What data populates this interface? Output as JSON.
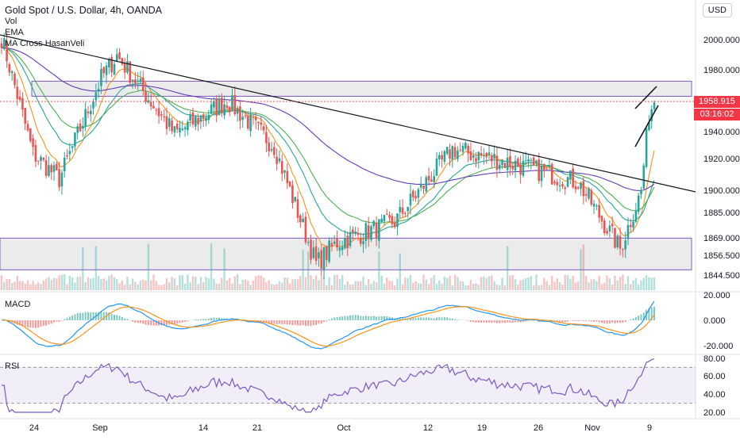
{
  "header": {
    "title": "Gold Spot / U.S. Dollar, 4h, OANDA",
    "indicators": [
      "Vol",
      "EMA",
      "MA Cross HasanVeli"
    ]
  },
  "currency_button": "USD",
  "last_price": {
    "value": "1958.915",
    "countdown": "03:16:02",
    "color": "#f23645"
  },
  "panes": {
    "macd_label": "MACD",
    "rsi_label": "RSI"
  },
  "price_axis": {
    "top_partial": "2",
    "ticks": [
      "2000.000",
      "1980.000",
      "1958.915",
      "1940.000",
      "1920.000",
      "1900.000",
      "1885.000",
      "1869.000",
      "1856.500",
      "1844.500"
    ]
  },
  "macd_axis": {
    "ticks": [
      "20.000",
      "0.000",
      "-20.000"
    ]
  },
  "rsi_axis": {
    "ticks": [
      "80.00",
      "60.00",
      "40.00",
      "20.00"
    ]
  },
  "time_axis": {
    "labels": [
      "24",
      "Sep",
      "14",
      "21",
      "Oct",
      "12",
      "19",
      "26",
      "Nov",
      "9"
    ]
  },
  "colors": {
    "bull": "#26a69a",
    "bear": "#ef5350",
    "ema_fast": "#f7931a",
    "ema_mid": "#26a69a",
    "ema_slow": "#673ab7",
    "macd": "#2196f3",
    "signal": "#f7931a",
    "rsi": "#7e57c2",
    "zone": "#7e57c2"
  },
  "chart_data": {
    "type": "candlestick",
    "title": "Gold Spot / U.S. Dollar, 4h, OANDA",
    "y_range": [
      1840,
      2010
    ],
    "anchor_closes": [
      {
        "date": "Aug 22",
        "price": 2002
      },
      {
        "date": "Aug 24",
        "price": 1925
      },
      {
        "date": "Aug 27",
        "price": 1908
      },
      {
        "date": "Aug 31",
        "price": 1975
      },
      {
        "date": "Sep 1",
        "price": 1990
      },
      {
        "date": "Sep 7",
        "price": 1938
      },
      {
        "date": "Sep 14",
        "price": 1960
      },
      {
        "date": "Sep 21",
        "price": 1930
      },
      {
        "date": "Sep 26",
        "price": 1852
      },
      {
        "date": "Sep 29",
        "price": 1866
      },
      {
        "date": "Oct 5",
        "price": 1880
      },
      {
        "date": "Oct 12",
        "price": 1928
      },
      {
        "date": "Oct 19",
        "price": 1918
      },
      {
        "date": "Oct 26",
        "price": 1906
      },
      {
        "date": "Nov 1",
        "price": 1862
      },
      {
        "date": "Nov 6",
        "price": 1900
      },
      {
        "date": "Nov 8",
        "price": 1952
      },
      {
        "date": "Nov 10",
        "price": 1958.915
      }
    ],
    "zones": [
      {
        "label": "resistance",
        "from": 1963,
        "to": 1973
      },
      {
        "label": "support",
        "from": 1848,
        "to": 1869
      }
    ],
    "rsi_range": [
      20,
      80
    ],
    "macd_range": [
      -20,
      20
    ]
  }
}
